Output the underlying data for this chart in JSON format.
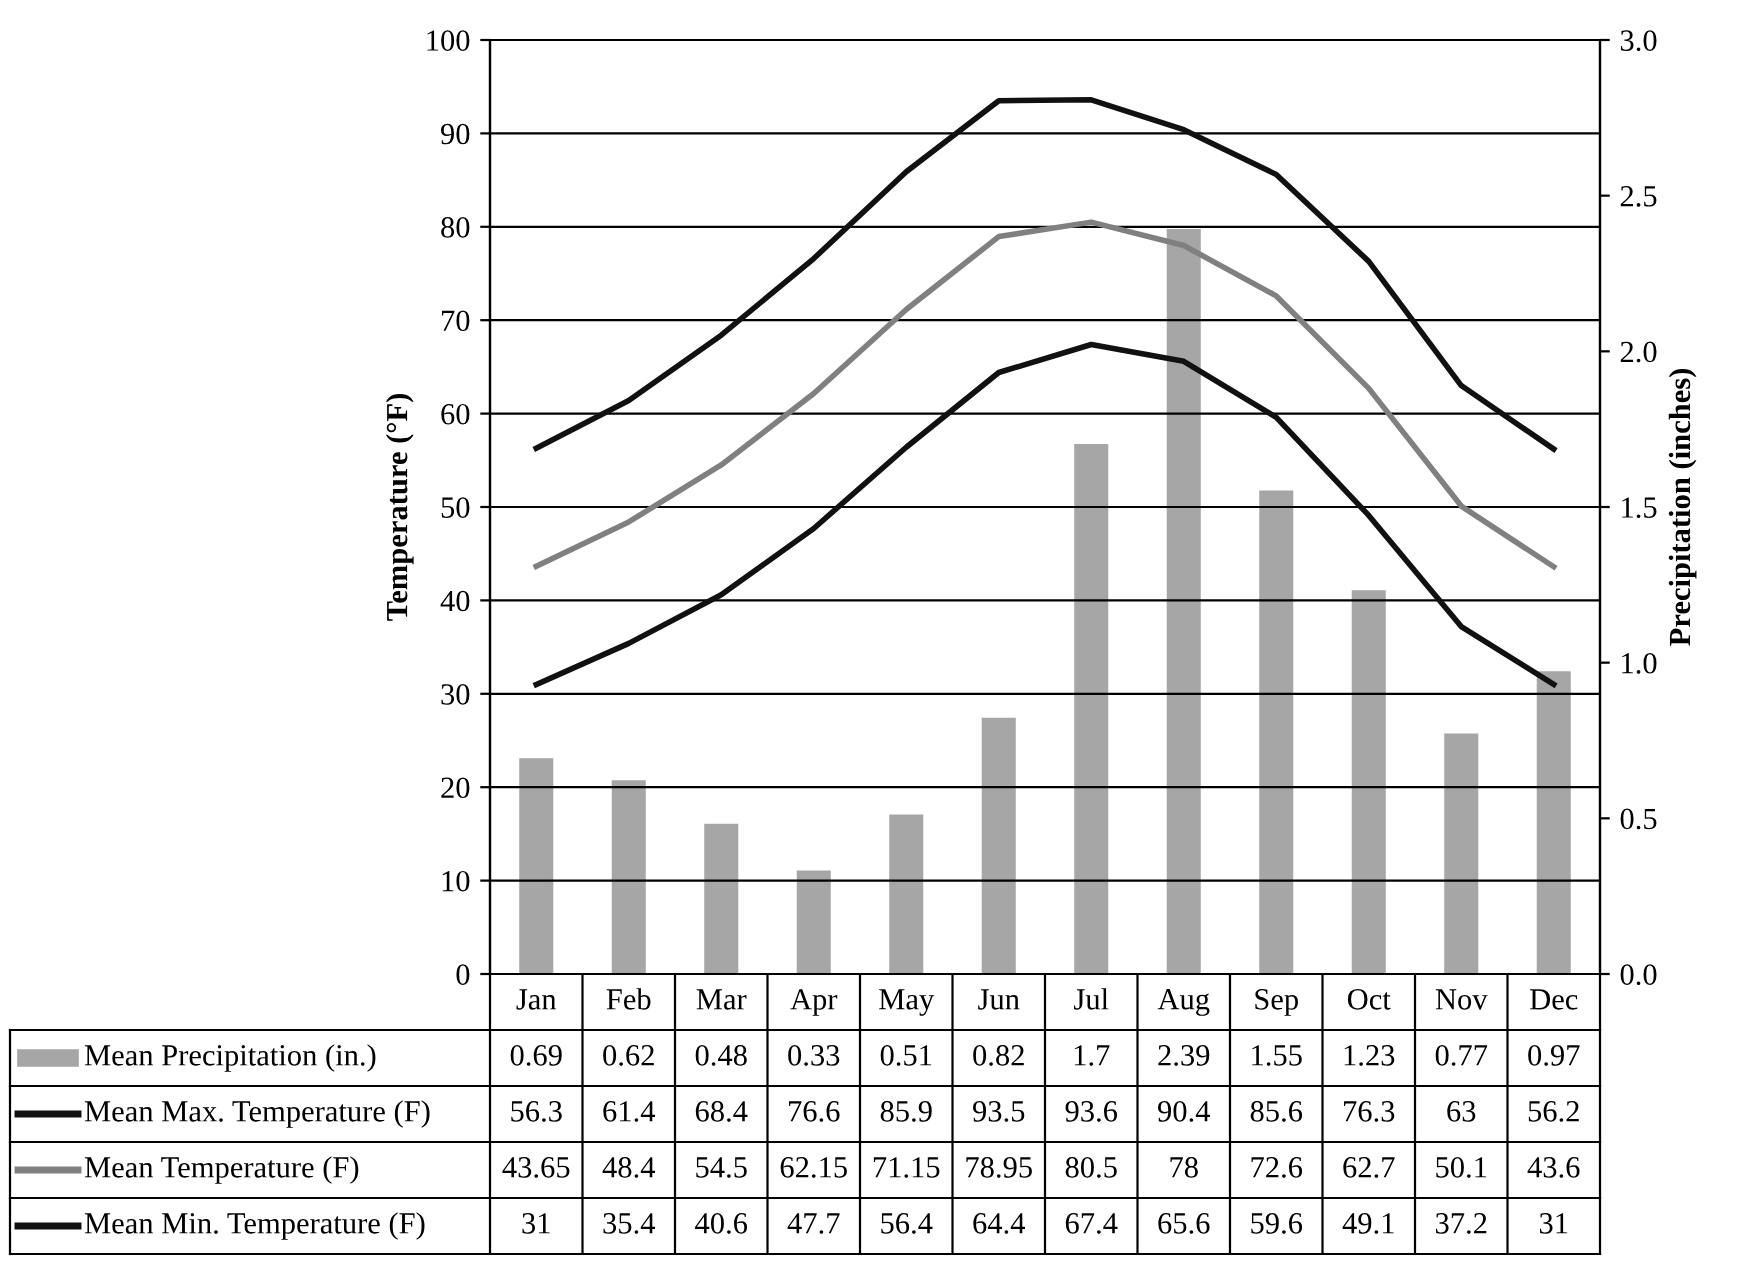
{
  "chart_data": {
    "type": "line",
    "ylabel": "Temperature (°F)",
    "y2label": "Precipitation (inches)",
    "categories": [
      "Jan",
      "Feb",
      "Mar",
      "Apr",
      "May",
      "Jun",
      "Jul",
      "Aug",
      "Sep",
      "Oct",
      "Nov",
      "Dec"
    ],
    "ylim": [
      0,
      100
    ],
    "yticks": [
      0,
      10,
      20,
      30,
      40,
      50,
      60,
      70,
      80,
      90,
      100
    ],
    "y2lim": [
      0,
      3.0
    ],
    "y2ticks": [
      {
        "value": 0,
        "label": "0.0"
      },
      {
        "value": 0.5,
        "label": "0.5"
      },
      {
        "value": 1.0,
        "label": "1.0"
      },
      {
        "value": 1.5,
        "label": "1.5"
      },
      {
        "value": 2.0,
        "label": "2.0"
      },
      {
        "value": 2.5,
        "label": "2.5"
      },
      {
        "value": 3.0,
        "label": "3.0"
      }
    ],
    "grid": "y",
    "data_labels": true,
    "legend": "bottom left",
    "series": [
      {
        "name": "Mean Precipitation (in.)",
        "type": "bar",
        "axis": "y2",
        "color": "#a6a6a6",
        "values": [
          0.69,
          0.62,
          0.48,
          0.33,
          0.51,
          0.82,
          1.7,
          2.39,
          1.55,
          1.23,
          0.77,
          0.97
        ]
      },
      {
        "name": "Mean Max. Temperature (F)",
        "color": "#111111",
        "values": [
          56.3,
          61.4,
          68.4,
          76.6,
          85.9,
          93.5,
          93.6,
          90.4,
          85.6,
          76.3,
          63,
          56.2
        ]
      },
      {
        "name": "Mean Temperature (F)",
        "color": "#808080",
        "values": [
          43.65,
          48.4,
          54.5,
          62.15,
          71.15,
          78.95,
          80.5,
          78,
          72.6,
          62.7,
          50.1,
          43.6
        ]
      },
      {
        "name": "Mean Min. Temperature (F)",
        "color": "#111111",
        "values": [
          31,
          35.4,
          40.6,
          47.7,
          56.4,
          64.4,
          67.4,
          65.6,
          59.6,
          49.1,
          37.2,
          31
        ]
      }
    ]
  }
}
